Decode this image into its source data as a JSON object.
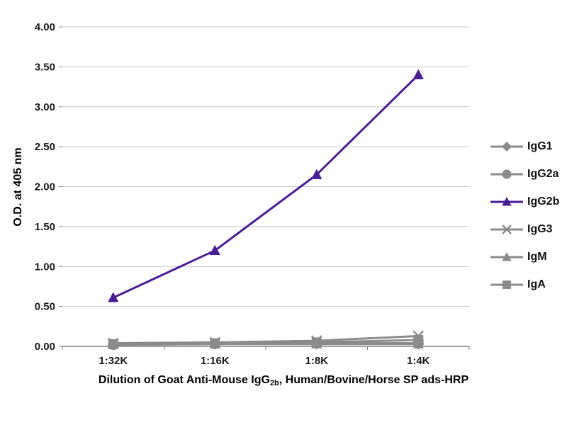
{
  "chart_data": {
    "type": "line",
    "title": "",
    "categories": [
      "1:32K",
      "1:16K",
      "1:8K",
      "1:4K"
    ],
    "series": [
      {
        "name": "IgG1",
        "marker": "diamond",
        "color": "#8b8b8b",
        "values": [
          0.02,
          0.03,
          0.03,
          0.03
        ]
      },
      {
        "name": "IgG2a",
        "marker": "circle",
        "color": "#8b8b8b",
        "values": [
          0.02,
          0.03,
          0.04,
          0.04
        ]
      },
      {
        "name": "IgG2b",
        "marker": "triangle",
        "color": "#4a1d96",
        "values": [
          0.61,
          1.2,
          2.15,
          3.4
        ]
      },
      {
        "name": "IgG3",
        "marker": "x",
        "color": "#8b8b8b",
        "values": [
          0.04,
          0.05,
          0.07,
          0.13
        ]
      },
      {
        "name": "IgM",
        "marker": "triangle",
        "color": "#8b8b8b",
        "values": [
          0.02,
          0.03,
          0.03,
          0.03
        ]
      },
      {
        "name": "IgA",
        "marker": "square",
        "color": "#8b8b8b",
        "values": [
          0.03,
          0.04,
          0.05,
          0.08
        ]
      }
    ],
    "ylabel": "O.D. at 405 nm",
    "xlabel": "Dilution of Goat Anti-Mouse IgG2b, Human/Bovine/Horse SP ads-HRP",
    "xlabel_parts": [
      {
        "text": "Dilution of Goat Anti-Mouse IgG",
        "sub": false
      },
      {
        "text": "2b",
        "sub": true
      },
      {
        "text": ", Human/Bovine/Horse SP ads-HRP",
        "sub": false
      }
    ],
    "ylim": [
      0,
      4
    ],
    "yticks": [
      0,
      0.5,
      1,
      1.5,
      2,
      2.5,
      3,
      3.5,
      4
    ],
    "ytick_format_decimals": 2,
    "grid": true,
    "legend_position": "right",
    "colors": {
      "grid": "#c6c6c6",
      "axis": "#808080",
      "text": "#1a1a1a",
      "background": "#ffffff"
    }
  }
}
